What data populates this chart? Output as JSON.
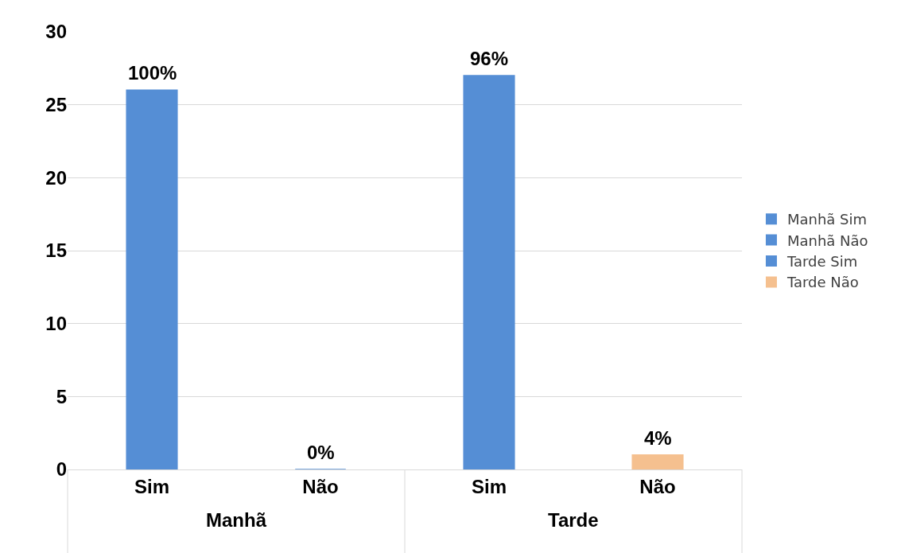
{
  "chart_data": {
    "type": "bar",
    "categories": [
      "Sim",
      "Não",
      "Sim",
      "Não"
    ],
    "series": [
      {
        "name": "Manhã Sim",
        "color": "#558ed5",
        "values": [
          26,
          null,
          null,
          null
        ]
      },
      {
        "name": "Manhã Não",
        "color": "#558ed5",
        "values": [
          null,
          0,
          null,
          null
        ]
      },
      {
        "name": "Tarde Sim",
        "color": "#558ed5",
        "values": [
          null,
          null,
          27,
          null
        ]
      },
      {
        "name": "Tarde Não",
        "color": "#f5c08f",
        "values": [
          null,
          null,
          null,
          1
        ]
      }
    ],
    "annotations": [
      "Manhã",
      "Tarde",
      "100%",
      "0%",
      "96%",
      "4%"
    ],
    "ylim": [
      0,
      30
    ],
    "yticks": [
      0,
      5,
      10,
      15,
      20,
      25,
      30
    ],
    "grid": "y",
    "legend": "right"
  }
}
